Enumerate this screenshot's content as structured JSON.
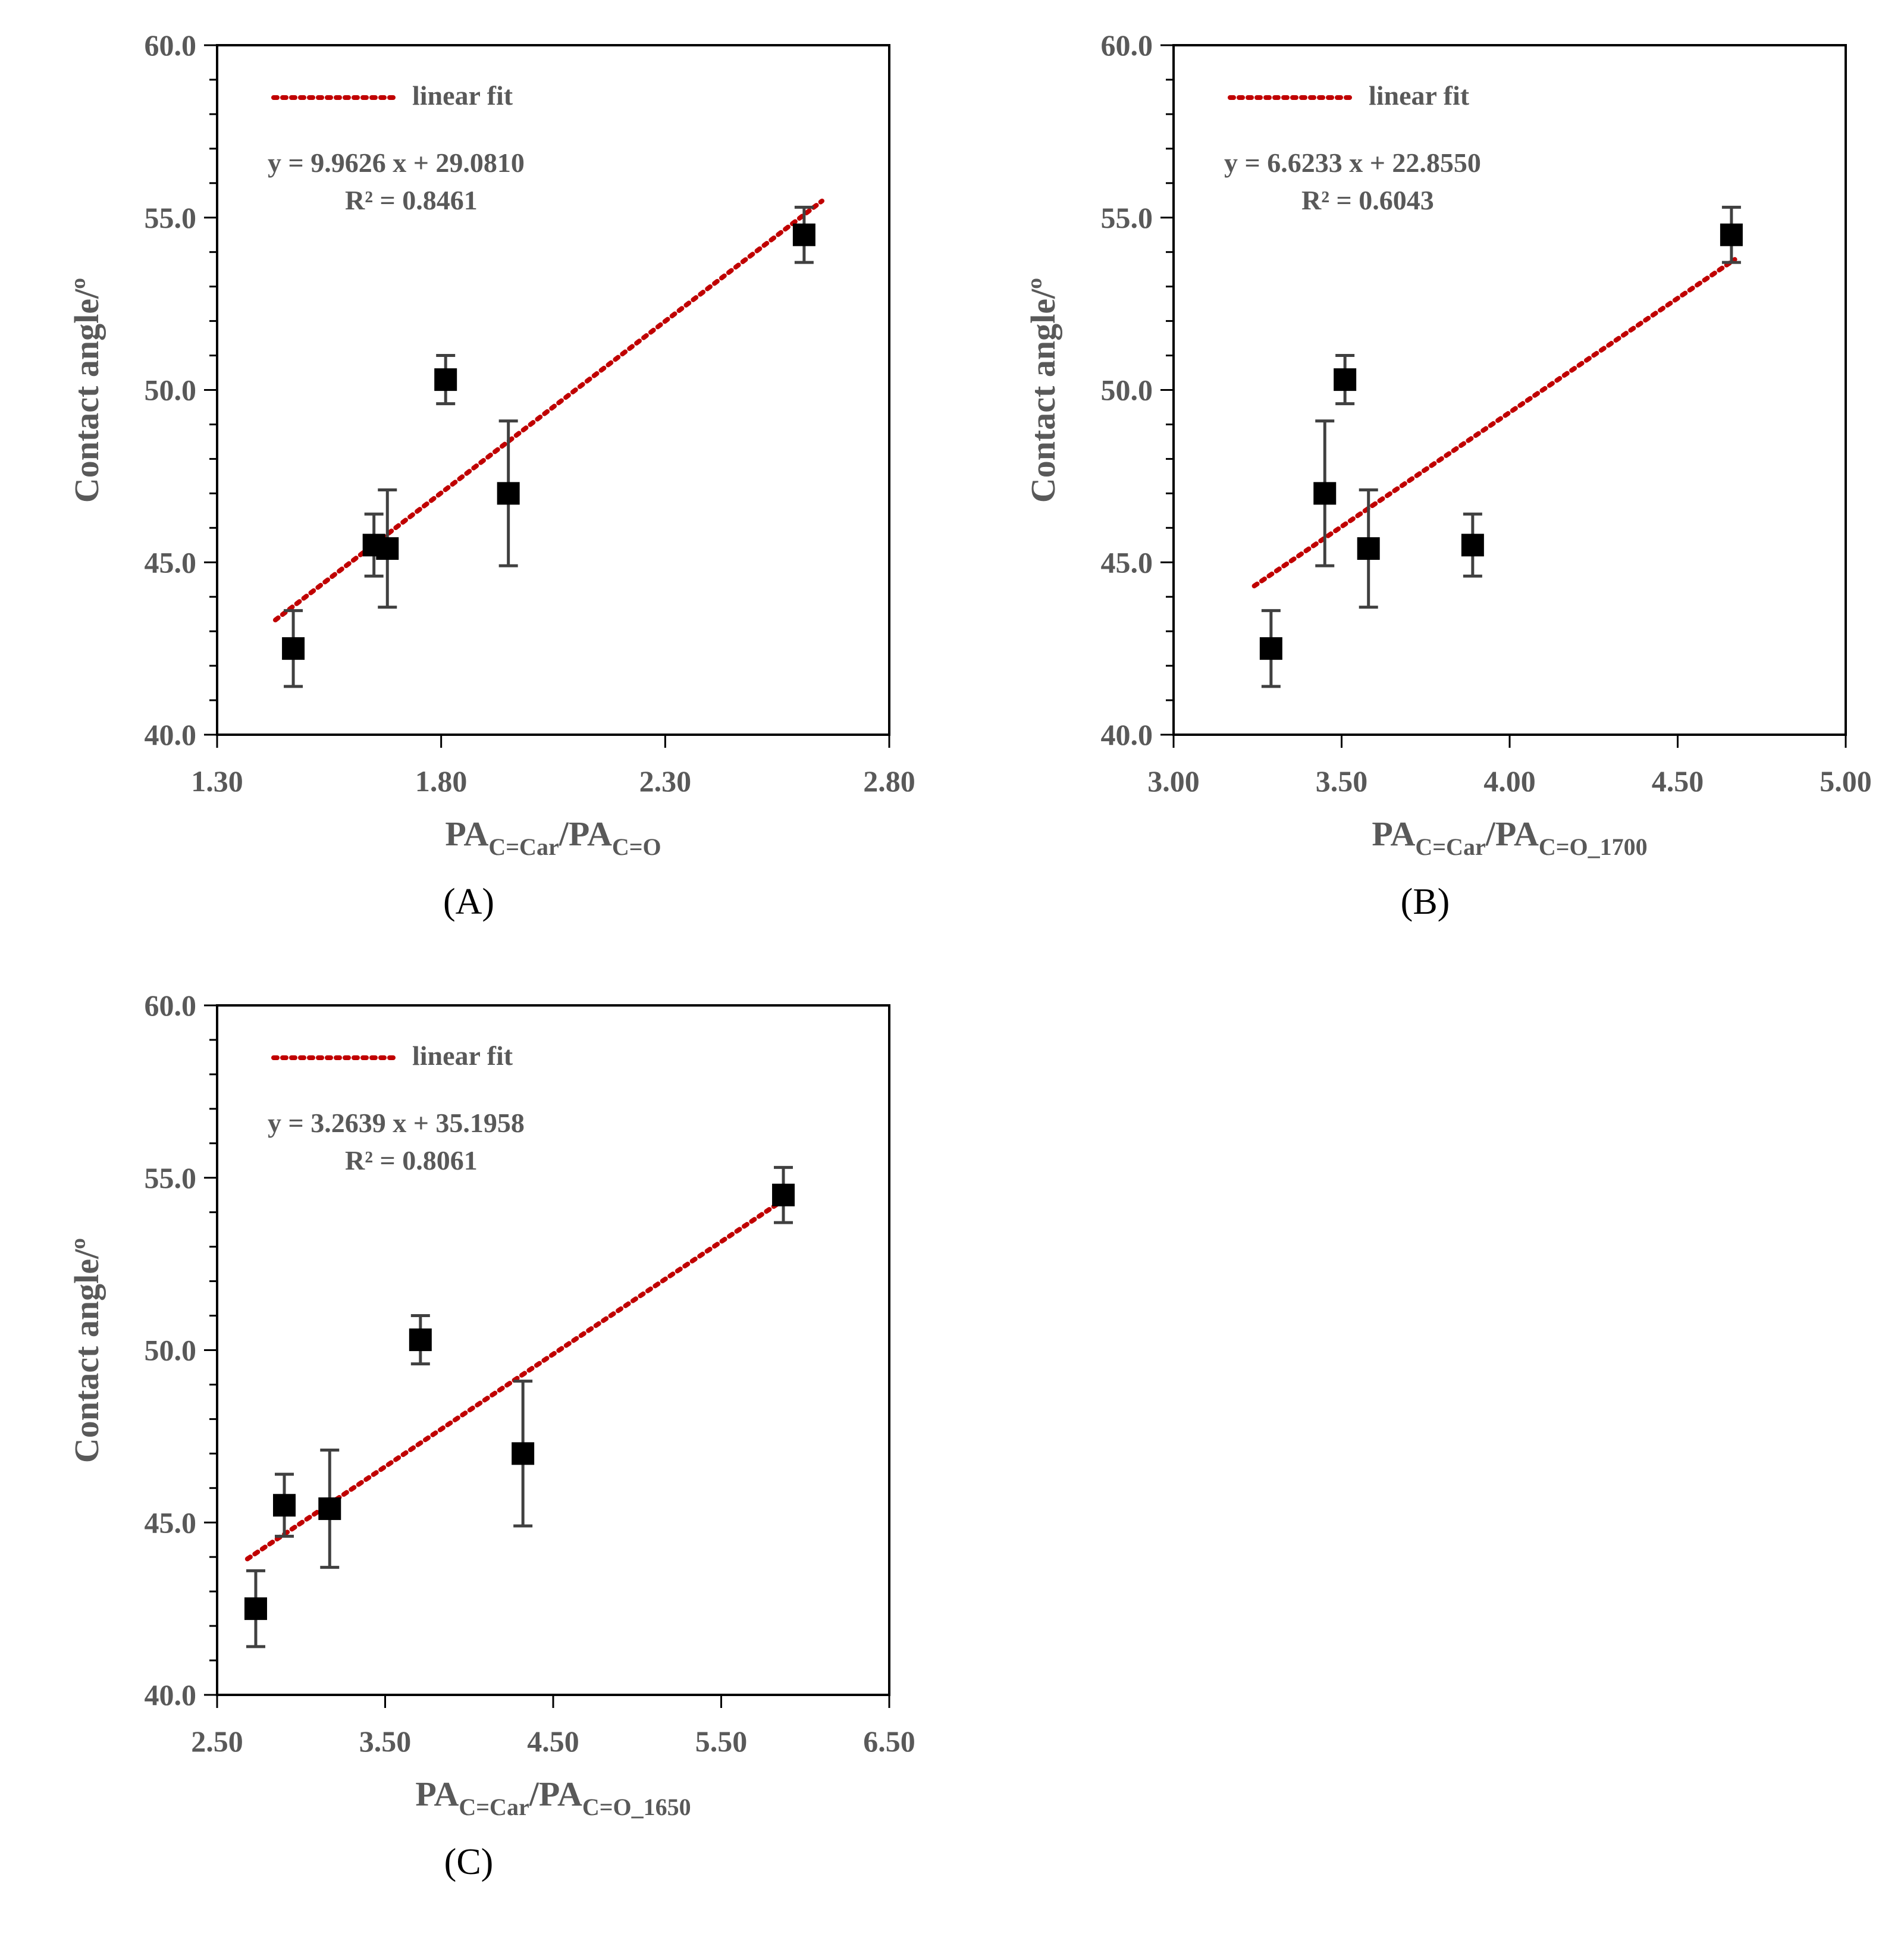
{
  "figure": {
    "colors": {
      "fit": "#c00000",
      "marker": "#000000",
      "errorbar": "#404040",
      "axis": "#000000",
      "text": "#595959"
    }
  },
  "chart_data": [
    {
      "id": "A",
      "type": "scatter",
      "panel_label": "(A)",
      "ylabel": "Contact angle/º",
      "xlabel_main": "PA",
      "xlabel_sub1": "C=Car",
      "xlabel_sep": "/PA",
      "xlabel_sub2": "C=O",
      "xlim": [
        1.3,
        2.8
      ],
      "ylim": [
        40.0,
        60.0
      ],
      "xticks": [
        "1.30",
        "1.80",
        "2.30",
        "2.80"
      ],
      "yticks": [
        "40.0",
        "45.0",
        "50.0",
        "55.0",
        "60.0"
      ],
      "legend": "linear fit",
      "equation": "y = 9.9626 x + 29.0810",
      "r2": "R² = 0.8461",
      "fit": {
        "slope": 9.9626,
        "intercept": 29.081,
        "x_range": [
          1.43,
          2.65
        ]
      },
      "points": [
        {
          "x": 1.47,
          "y": 42.5,
          "err": 1.1
        },
        {
          "x": 1.65,
          "y": 45.5,
          "err": 0.9
        },
        {
          "x": 1.68,
          "y": 45.4,
          "err": 1.7
        },
        {
          "x": 1.81,
          "y": 50.3,
          "err": 0.7
        },
        {
          "x": 1.95,
          "y": 47.0,
          "err": 2.1
        },
        {
          "x": 2.61,
          "y": 54.5,
          "err": 0.8
        }
      ]
    },
    {
      "id": "B",
      "type": "scatter",
      "panel_label": "(B)",
      "ylabel": "Contact angle/º",
      "xlabel_main": "PA",
      "xlabel_sub1": "C=Car",
      "xlabel_sep": "/PA",
      "xlabel_sub2": "C=O_1700",
      "xlim": [
        3.0,
        5.0
      ],
      "ylim": [
        40.0,
        60.0
      ],
      "xticks": [
        "3.00",
        "3.50",
        "4.00",
        "4.50",
        "5.00"
      ],
      "yticks": [
        "40.0",
        "45.0",
        "50.0",
        "55.0",
        "60.0"
      ],
      "legend": "linear fit",
      "equation": "y = 6.6233 x + 22.8550",
      "r2": "R² = 0.6043",
      "fit": {
        "slope": 6.6233,
        "intercept": 22.855,
        "x_range": [
          3.24,
          4.67
        ]
      },
      "points": [
        {
          "x": 3.29,
          "y": 42.5,
          "err": 1.1
        },
        {
          "x": 3.45,
          "y": 47.0,
          "err": 2.1
        },
        {
          "x": 3.51,
          "y": 50.3,
          "err": 0.7
        },
        {
          "x": 3.58,
          "y": 45.4,
          "err": 1.7
        },
        {
          "x": 3.89,
          "y": 45.5,
          "err": 0.9
        },
        {
          "x": 4.66,
          "y": 54.5,
          "err": 0.8
        }
      ]
    },
    {
      "id": "C",
      "type": "scatter",
      "panel_label": "(C)",
      "ylabel": "Contact angle/º",
      "xlabel_main": "PA",
      "xlabel_sub1": "C=Car",
      "xlabel_sep": "/PA",
      "xlabel_sub2": "C=O_1650",
      "xlim": [
        2.5,
        6.5
      ],
      "ylim": [
        40.0,
        60.0
      ],
      "xticks": [
        "2.50",
        "3.50",
        "4.50",
        "5.50",
        "6.50"
      ],
      "yticks": [
        "40.0",
        "45.0",
        "50.0",
        "55.0",
        "60.0"
      ],
      "legend": "linear fit",
      "equation": "y = 3.2639 x + 35.1958",
      "r2": "R² = 0.8061",
      "fit": {
        "slope": 3.2639,
        "intercept": 35.1958,
        "x_range": [
          2.68,
          5.88
        ]
      },
      "points": [
        {
          "x": 2.73,
          "y": 42.5,
          "err": 1.1
        },
        {
          "x": 2.9,
          "y": 45.5,
          "err": 0.9
        },
        {
          "x": 3.17,
          "y": 45.4,
          "err": 1.7
        },
        {
          "x": 3.71,
          "y": 50.3,
          "err": 0.7
        },
        {
          "x": 4.32,
          "y": 47.0,
          "err": 2.1
        },
        {
          "x": 5.87,
          "y": 54.5,
          "err": 0.8
        }
      ]
    }
  ]
}
